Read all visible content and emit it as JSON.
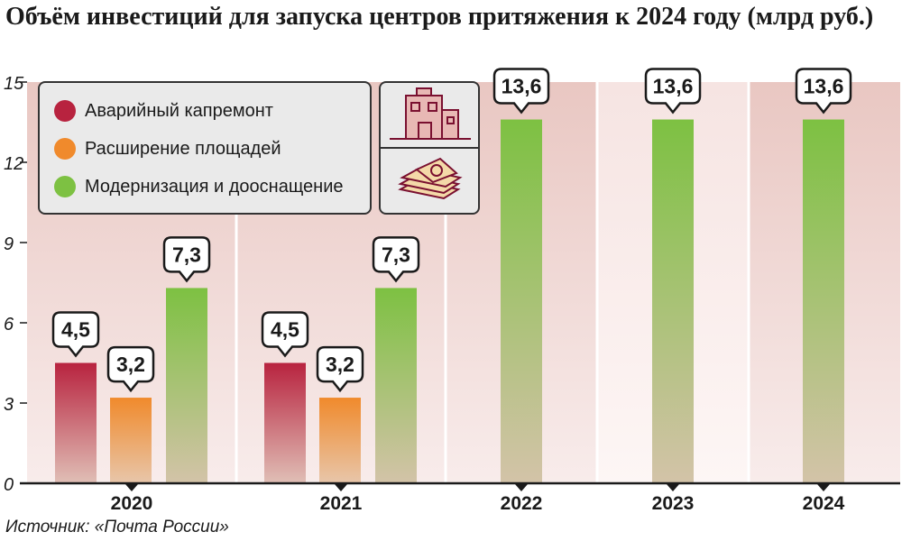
{
  "title": "Объём инвестиций для запуска центров притяжения к 2024 году (млрд руб.)",
  "source": "Источник: «Почта России»",
  "legend": {
    "items": [
      {
        "label": "Аварийный капремонт",
        "color": "#b8233f"
      },
      {
        "label": "Расширение площадей",
        "color": "#f08a2c"
      },
      {
        "label": "Модернизация и дооснащение",
        "color": "#7dc142"
      }
    ]
  },
  "icons": [
    "building-icon",
    "money-stack-icon"
  ],
  "chart_data": {
    "type": "bar",
    "title": "Объём инвестиций для запуска центров притяжения к 2024 году (млрд руб.)",
    "xlabel": "",
    "ylabel": "млрд руб.",
    "ylim": [
      0,
      15
    ],
    "yticks": [
      "0",
      "3",
      "6",
      "9",
      "12",
      "15"
    ],
    "ytick_values": [
      0,
      3,
      6,
      9,
      12,
      15
    ],
    "grid": false,
    "categories": [
      "2020",
      "2021",
      "2022",
      "2023",
      "2024"
    ],
    "series": [
      {
        "name": "Аварийный капремонт",
        "color": "#b8233f",
        "values": [
          4.5,
          4.5,
          null,
          null,
          null
        ],
        "labels": [
          "4,5",
          "4,5",
          null,
          null,
          null
        ]
      },
      {
        "name": "Расширение площадей",
        "color": "#f08a2c",
        "values": [
          3.2,
          3.2,
          null,
          null,
          null
        ],
        "labels": [
          "3,2",
          "3,2",
          null,
          null,
          null
        ]
      },
      {
        "name": "Модернизация и дооснащение",
        "color": "#7dc142",
        "values": [
          7.3,
          7.3,
          13.6,
          13.6,
          13.6
        ],
        "labels": [
          "7,3",
          "7,3",
          "13,6",
          "13,6",
          "13,6"
        ]
      }
    ]
  }
}
